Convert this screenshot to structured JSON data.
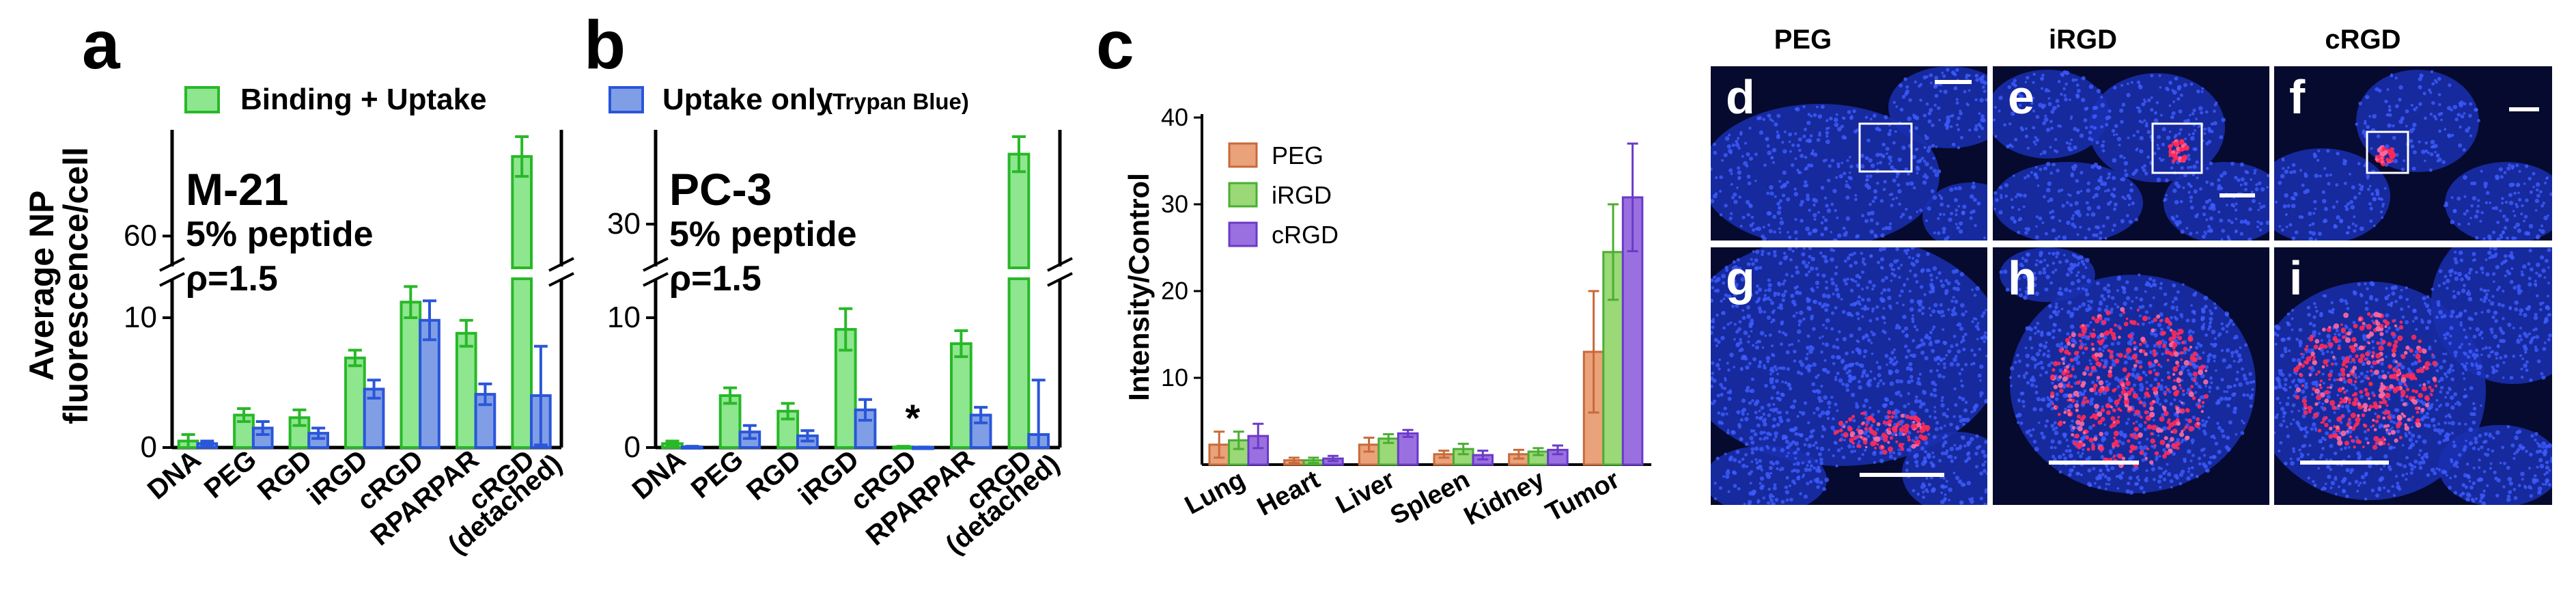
{
  "figure": {
    "panel_labels": {
      "a": "a",
      "b": "b",
      "c": "c",
      "d": "d",
      "e": "e",
      "f": "f",
      "g": "g",
      "h": "h",
      "i": "i"
    },
    "legend_ab": {
      "binding_uptake": "Binding + Uptake",
      "uptake_only": "Uptake only",
      "uptake_only_note": "(Trypan Blue)"
    },
    "colors": {
      "green_fill": "#8ee68e",
      "green_edge": "#28b828",
      "blue_fill": "#7f9ee6",
      "blue_edge": "#2a56d8",
      "peg": "#e9a27a",
      "peg_edge": "#c86a3a",
      "irgd": "#9ad878",
      "irgd_edge": "#4aae32",
      "crgd": "#9a70e0",
      "crgd_edge": "#6a3ac8",
      "micro_bg": "#050a2e"
    },
    "y_axis_label_ab": [
      "Average NP",
      "fluorescence/cell"
    ],
    "micrograph_headers": {
      "peg": "PEG",
      "irgd": "iRGD",
      "crgd": "cRGD"
    }
  },
  "chart_data": [
    {
      "panel": "a",
      "type": "bar",
      "title": "M-21",
      "annotation": [
        "M-21",
        "5% peptide",
        "ρ=1.5"
      ],
      "categories": [
        "DNA",
        "PEG",
        "RGD",
        "iRGD",
        "cRGD",
        "RPARPAR",
        "cRGD (detached)"
      ],
      "category_labels": [
        [
          "DNA"
        ],
        [
          "PEG"
        ],
        [
          "RGD"
        ],
        [
          "iRGD"
        ],
        [
          "cRGD"
        ],
        [
          "RPARPAR"
        ],
        [
          "cRGD",
          "(detached)"
        ]
      ],
      "series": [
        {
          "name": "Binding + Uptake",
          "values": [
            0.5,
            2.5,
            2.3,
            6.9,
            11.2,
            8.8,
            80
          ],
          "errors": [
            0.5,
            0.5,
            0.6,
            0.6,
            1.2,
            1.0,
            5
          ]
        },
        {
          "name": "Uptake only (Trypan Blue)",
          "values": [
            0.3,
            1.5,
            1.1,
            4.5,
            9.8,
            4.1,
            4
          ],
          "errors": [
            0.2,
            0.5,
            0.4,
            0.7,
            1.5,
            0.8,
            3.8
          ]
        }
      ],
      "y_ticks_lower": [
        "0",
        "10"
      ],
      "y_ticks_upper": [
        "60"
      ],
      "ylim_lower": [
        0,
        13
      ],
      "ylim_upper": [
        52,
        85
      ],
      "xlabel": "",
      "ylabel": "Average NP fluorescence/cell"
    },
    {
      "panel": "b",
      "type": "bar",
      "title": "PC-3",
      "annotation": [
        "PC-3",
        "5% peptide",
        "ρ=1.5"
      ],
      "categories": [
        "DNA",
        "PEG",
        "RGD",
        "iRGD",
        "cRGD",
        "RPARPAR",
        "cRGD (detached)"
      ],
      "category_labels": [
        [
          "DNA"
        ],
        [
          "PEG"
        ],
        [
          "RGD"
        ],
        [
          "iRGD"
        ],
        [
          "cRGD"
        ],
        [
          "RPARPAR"
        ],
        [
          "cRGD",
          "(detached)"
        ]
      ],
      "series": [
        {
          "name": "Binding + Uptake",
          "values": [
            0.3,
            4.0,
            2.8,
            9.1,
            0.05,
            8.0,
            38
          ],
          "errors": [
            0.2,
            0.6,
            0.6,
            1.6,
            0.05,
            1.0,
            2
          ]
        },
        {
          "name": "Uptake only (Trypan Blue)",
          "values": [
            0.05,
            1.2,
            0.9,
            2.9,
            0.02,
            2.5,
            1.0
          ],
          "errors": [
            0.05,
            0.5,
            0.4,
            0.8,
            0.02,
            0.6,
            4.2
          ]
        }
      ],
      "star_label": "*",
      "y_ticks_lower": [
        "0",
        "10"
      ],
      "y_ticks_upper": [
        "30"
      ],
      "ylim_lower": [
        0,
        13
      ],
      "ylim_upper": [
        25,
        40
      ],
      "xlabel": "",
      "ylabel": "Average NP fluorescence/cell"
    },
    {
      "panel": "c",
      "type": "bar",
      "title": "",
      "categories": [
        "Lung",
        "Heart",
        "Liver",
        "Spleen",
        "Kidney",
        "Tumor"
      ],
      "series": [
        {
          "name": "PEG",
          "values": [
            2.3,
            0.5,
            2.3,
            1.2,
            1.2,
            13.0
          ],
          "errors": [
            1.5,
            0.3,
            0.8,
            0.4,
            0.5,
            7.0
          ]
        },
        {
          "name": "iRGD",
          "values": [
            2.8,
            0.5,
            3.0,
            1.8,
            1.5,
            24.5
          ],
          "errors": [
            1.0,
            0.3,
            0.5,
            0.6,
            0.4,
            5.5
          ]
        },
        {
          "name": "cRGD",
          "values": [
            3.3,
            0.7,
            3.6,
            1.1,
            1.7,
            30.8
          ],
          "errors": [
            1.4,
            0.3,
            0.4,
            0.5,
            0.5,
            6.2
          ]
        }
      ],
      "y_ticks": [
        "10",
        "20",
        "30",
        "40"
      ],
      "ylim": [
        0,
        40
      ],
      "xlabel": "",
      "ylabel": "Intensity/Control"
    }
  ]
}
